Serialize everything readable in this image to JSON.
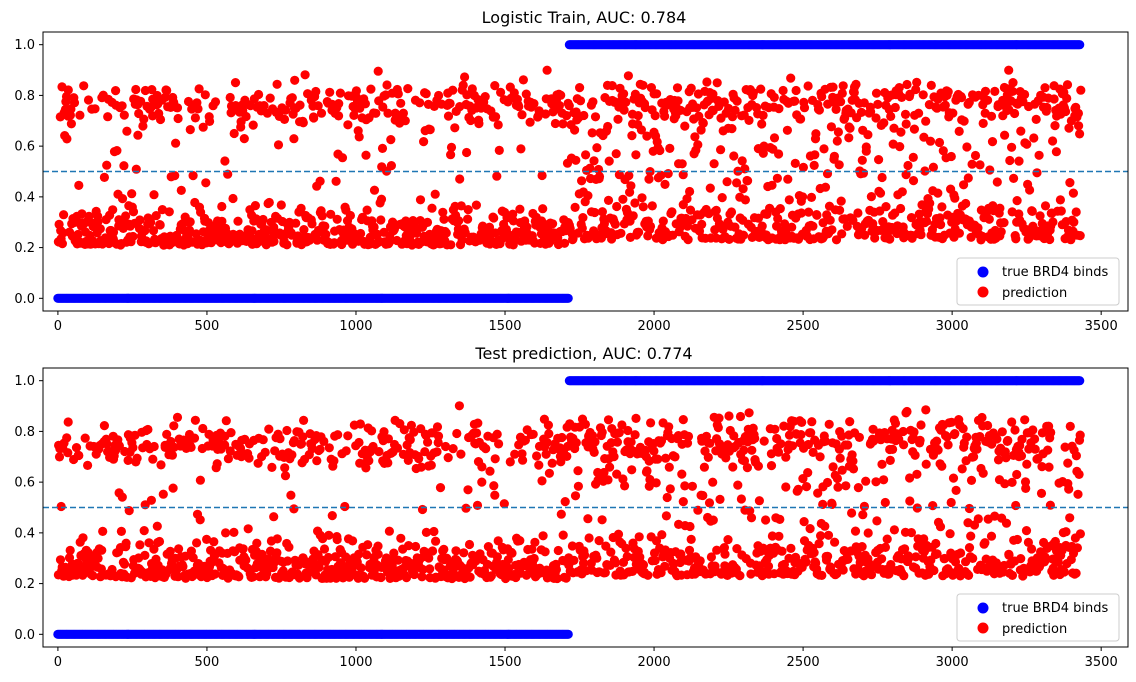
{
  "chart_data": [
    {
      "type": "scatter",
      "title": "Logistic Train, AUC: 0.784",
      "xlim": [
        -50,
        3590
      ],
      "ylim": [
        -0.05,
        1.05
      ],
      "xticks": [
        0,
        500,
        1000,
        1500,
        2000,
        2500,
        3000,
        3500
      ],
      "xtick_labels": [
        "0",
        "500",
        "1000",
        "1500",
        "2000",
        "2500",
        "3000",
        "3500"
      ],
      "yticks": [
        0.0,
        0.2,
        0.4,
        0.6,
        0.8,
        1.0
      ],
      "ytick_labels": [
        "0.0",
        "0.2",
        "0.4",
        "0.6",
        "0.8",
        "1.0"
      ],
      "threshold": 0.5,
      "legend_position": "lower-right",
      "series": [
        {
          "name": "true BRD4 binds",
          "color": "#0000ff",
          "segments": [
            {
              "x_start": 0,
              "x_end": 1715,
              "y": 0.0
            },
            {
              "x_start": 1716,
              "x_end": 3430,
              "y": 1.0
            }
          ]
        },
        {
          "name": "prediction",
          "color": "#ff0000",
          "x_range": [
            0,
            3430
          ],
          "class_boundary": 1715,
          "negative_class": {
            "cluster_low": 0.25,
            "cluster_high": 0.76,
            "fraction_low": 0.62,
            "min": 0.12,
            "max": 0.9
          },
          "positive_class": {
            "cluster_low": 0.27,
            "cluster_high": 0.78,
            "fraction_high": 0.62,
            "min": 0.14,
            "max": 0.91
          }
        }
      ]
    },
    {
      "type": "scatter",
      "title": "Test prediction, AUC: 0.774",
      "xlim": [
        -50,
        3590
      ],
      "ylim": [
        -0.05,
        1.05
      ],
      "xticks": [
        0,
        500,
        1000,
        1500,
        2000,
        2500,
        3000,
        3500
      ],
      "xtick_labels": [
        "0",
        "500",
        "1000",
        "1500",
        "2000",
        "2500",
        "3000",
        "3500"
      ],
      "yticks": [
        0.0,
        0.2,
        0.4,
        0.6,
        0.8,
        1.0
      ],
      "ytick_labels": [
        "0.0",
        "0.2",
        "0.4",
        "0.6",
        "0.8",
        "1.0"
      ],
      "threshold": 0.5,
      "legend_position": "lower-right",
      "series": [
        {
          "name": "true BRD4 binds",
          "color": "#0000ff",
          "segments": [
            {
              "x_start": 0,
              "x_end": 1715,
              "y": 0.0
            },
            {
              "x_start": 1716,
              "x_end": 3430,
              "y": 1.0
            }
          ]
        },
        {
          "name": "prediction",
          "color": "#ff0000",
          "x_range": [
            0,
            3430
          ],
          "class_boundary": 1715,
          "negative_class": {
            "cluster_low": 0.26,
            "cluster_high": 0.75,
            "fraction_low": 0.62,
            "min": 0.12,
            "max": 0.91
          },
          "positive_class": {
            "cluster_low": 0.27,
            "cluster_high": 0.78,
            "fraction_high": 0.6,
            "min": 0.14,
            "max": 0.92
          }
        }
      ]
    }
  ]
}
